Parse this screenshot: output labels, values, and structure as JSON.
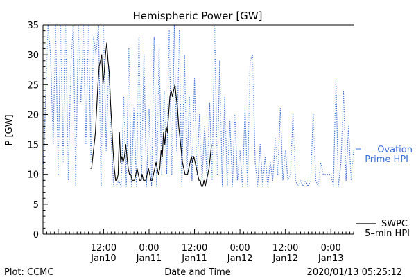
{
  "chart_data": {
    "type": "line",
    "title": "Hemispheric Power [GW]",
    "ylabel": "P [GW]",
    "xlabel": "Date and Time",
    "ylim": [
      0,
      35
    ],
    "xlim": [
      "2020-01-09T20:00",
      "2020-01-13T06:00"
    ],
    "yticks": [
      0,
      5,
      10,
      15,
      20,
      25,
      30,
      35
    ],
    "xticks": [
      {
        "t": "2020-01-10T12:00",
        "label": "12:00",
        "date": "Jan10"
      },
      {
        "t": "2020-01-11T00:00",
        "label": "0:00",
        "date": "Jan11"
      },
      {
        "t": "2020-01-11T12:00",
        "label": "12:00",
        "date": "Jan11"
      },
      {
        "t": "2020-01-12T00:00",
        "label": "0:00",
        "date": "Jan12"
      },
      {
        "t": "2020-01-12T12:00",
        "label": "12:00",
        "date": "Jan12"
      },
      {
        "t": "2020-01-13T00:00",
        "label": "0:00",
        "date": "Jan13"
      }
    ],
    "series": [
      {
        "name": "SWPC 5-min HPI",
        "style": "solid",
        "color": "#000000",
        "points": [
          [
            "2020-01-10T08:30",
            11
          ],
          [
            "2020-01-10T08:50",
            11
          ],
          [
            "2020-01-10T09:10",
            13
          ],
          [
            "2020-01-10T09:30",
            15
          ],
          [
            "2020-01-10T09:50",
            17
          ],
          [
            "2020-01-10T10:10",
            21
          ],
          [
            "2020-01-10T10:30",
            25
          ],
          [
            "2020-01-10T10:50",
            28
          ],
          [
            "2020-01-10T11:10",
            29
          ],
          [
            "2020-01-10T11:30",
            30
          ],
          [
            "2020-01-10T11:50",
            25
          ],
          [
            "2020-01-10T12:10",
            27
          ],
          [
            "2020-01-10T12:30",
            30
          ],
          [
            "2020-01-10T12:50",
            32
          ],
          [
            "2020-01-10T13:10",
            29
          ],
          [
            "2020-01-10T13:30",
            27
          ],
          [
            "2020-01-10T13:50",
            22
          ],
          [
            "2020-01-10T14:10",
            18
          ],
          [
            "2020-01-10T14:30",
            14
          ],
          [
            "2020-01-10T14:50",
            11
          ],
          [
            "2020-01-10T15:10",
            9
          ],
          [
            "2020-01-10T15:30",
            9
          ],
          [
            "2020-01-10T15:50",
            10
          ],
          [
            "2020-01-10T16:10",
            17
          ],
          [
            "2020-01-10T16:30",
            12
          ],
          [
            "2020-01-10T16:50",
            13
          ],
          [
            "2020-01-10T17:10",
            12
          ],
          [
            "2020-01-10T17:30",
            13
          ],
          [
            "2020-01-10T17:50",
            15
          ],
          [
            "2020-01-10T18:10",
            13
          ],
          [
            "2020-01-10T18:30",
            11
          ],
          [
            "2020-01-10T18:50",
            10
          ],
          [
            "2020-01-10T19:10",
            10
          ],
          [
            "2020-01-10T19:30",
            9
          ],
          [
            "2020-01-10T19:50",
            9
          ],
          [
            "2020-01-10T20:10",
            9
          ],
          [
            "2020-01-10T20:30",
            10
          ],
          [
            "2020-01-10T20:50",
            11
          ],
          [
            "2020-01-10T21:10",
            10
          ],
          [
            "2020-01-10T21:30",
            9
          ],
          [
            "2020-01-10T21:50",
            9
          ],
          [
            "2020-01-10T22:10",
            10
          ],
          [
            "2020-01-10T22:30",
            9
          ],
          [
            "2020-01-10T22:50",
            9
          ],
          [
            "2020-01-10T23:10",
            9
          ],
          [
            "2020-01-10T23:30",
            10
          ],
          [
            "2020-01-10T23:50",
            11
          ],
          [
            "2020-01-11T00:10",
            10
          ],
          [
            "2020-01-11T00:30",
            9
          ],
          [
            "2020-01-11T00:50",
            9
          ],
          [
            "2020-01-11T01:10",
            10
          ],
          [
            "2020-01-11T01:30",
            11
          ],
          [
            "2020-01-11T01:50",
            12
          ],
          [
            "2020-01-11T02:10",
            11
          ],
          [
            "2020-01-11T02:30",
            10
          ],
          [
            "2020-01-11T02:50",
            11
          ],
          [
            "2020-01-11T03:10",
            14
          ],
          [
            "2020-01-11T03:30",
            13
          ],
          [
            "2020-01-11T03:50",
            17
          ],
          [
            "2020-01-11T04:10",
            15
          ],
          [
            "2020-01-11T04:30",
            18
          ],
          [
            "2020-01-11T04:50",
            17
          ],
          [
            "2020-01-11T05:10",
            20
          ],
          [
            "2020-01-11T05:30",
            23
          ],
          [
            "2020-01-11T05:50",
            24
          ],
          [
            "2020-01-11T06:10",
            23
          ],
          [
            "2020-01-11T06:30",
            24
          ],
          [
            "2020-01-11T06:50",
            25
          ],
          [
            "2020-01-11T07:10",
            23
          ],
          [
            "2020-01-11T07:30",
            21
          ],
          [
            "2020-01-11T07:50",
            18
          ],
          [
            "2020-01-11T08:10",
            16
          ],
          [
            "2020-01-11T08:30",
            14
          ],
          [
            "2020-01-11T08:50",
            12
          ],
          [
            "2020-01-11T09:10",
            11
          ],
          [
            "2020-01-11T09:30",
            10
          ],
          [
            "2020-01-11T09:50",
            10
          ],
          [
            "2020-01-11T10:10",
            10
          ],
          [
            "2020-01-11T10:30",
            11
          ],
          [
            "2020-01-11T10:50",
            12
          ],
          [
            "2020-01-11T11:10",
            13
          ],
          [
            "2020-01-11T11:30",
            12
          ],
          [
            "2020-01-11T11:50",
            13
          ],
          [
            "2020-01-11T12:10",
            12
          ],
          [
            "2020-01-11T12:30",
            11
          ],
          [
            "2020-01-11T12:50",
            10
          ],
          [
            "2020-01-11T13:10",
            9
          ],
          [
            "2020-01-11T13:30",
            9
          ],
          [
            "2020-01-11T13:50",
            8
          ],
          [
            "2020-01-11T14:10",
            8
          ],
          [
            "2020-01-11T14:30",
            9
          ],
          [
            "2020-01-11T14:50",
            8
          ],
          [
            "2020-01-11T15:10",
            9
          ],
          [
            "2020-01-11T15:30",
            10
          ],
          [
            "2020-01-11T15:50",
            11
          ],
          [
            "2020-01-11T16:10",
            13
          ],
          [
            "2020-01-11T16:30",
            15
          ]
        ]
      },
      {
        "name": "Ovation Prime HPI",
        "style": "dotted",
        "color": "#3a6fd6",
        "points": [
          [
            "2020-01-09T20:00",
            8
          ],
          [
            "2020-01-09T20:40",
            22
          ],
          [
            "2020-01-09T21:20",
            35
          ],
          [
            "2020-01-09T22:00",
            30
          ],
          [
            "2020-01-09T22:40",
            15
          ],
          [
            "2020-01-09T23:20",
            35
          ],
          [
            "2020-01-10T00:00",
            10
          ],
          [
            "2020-01-10T00:40",
            35
          ],
          [
            "2020-01-10T01:20",
            12
          ],
          [
            "2020-01-10T02:00",
            35
          ],
          [
            "2020-01-10T02:40",
            9
          ],
          [
            "2020-01-10T03:20",
            28
          ],
          [
            "2020-01-10T04:00",
            35
          ],
          [
            "2020-01-10T04:40",
            8
          ],
          [
            "2020-01-10T05:20",
            35
          ],
          [
            "2020-01-10T06:00",
            22
          ],
          [
            "2020-01-10T06:40",
            35
          ],
          [
            "2020-01-10T07:20",
            15
          ],
          [
            "2020-01-10T08:00",
            35
          ],
          [
            "2020-01-10T08:40",
            12
          ],
          [
            "2020-01-10T09:20",
            33
          ],
          [
            "2020-01-10T10:00",
            30
          ],
          [
            "2020-01-10T10:40",
            35
          ],
          [
            "2020-01-10T11:20",
            8
          ],
          [
            "2020-01-10T12:00",
            35
          ],
          [
            "2020-01-10T12:40",
            14
          ],
          [
            "2020-01-10T13:20",
            28
          ],
          [
            "2020-01-10T14:00",
            16
          ],
          [
            "2020-01-10T14:40",
            8
          ],
          [
            "2020-01-10T15:20",
            8
          ],
          [
            "2020-01-10T16:00",
            9
          ],
          [
            "2020-01-10T16:40",
            8
          ],
          [
            "2020-01-10T17:20",
            23
          ],
          [
            "2020-01-10T18:00",
            8
          ],
          [
            "2020-01-10T18:40",
            31
          ],
          [
            "2020-01-10T19:20",
            8
          ],
          [
            "2020-01-10T20:00",
            21
          ],
          [
            "2020-01-10T20:40",
            8
          ],
          [
            "2020-01-10T21:20",
            33
          ],
          [
            "2020-01-10T22:00",
            9
          ],
          [
            "2020-01-10T22:40",
            30
          ],
          [
            "2020-01-10T23:20",
            8
          ],
          [
            "2020-01-11T00:00",
            21
          ],
          [
            "2020-01-11T00:40",
            8
          ],
          [
            "2020-01-11T01:20",
            33
          ],
          [
            "2020-01-11T02:00",
            8
          ],
          [
            "2020-01-11T02:40",
            31
          ],
          [
            "2020-01-11T03:20",
            10
          ],
          [
            "2020-01-11T04:00",
            24
          ],
          [
            "2020-01-11T04:40",
            10
          ],
          [
            "2020-01-11T05:20",
            34
          ],
          [
            "2020-01-11T06:00",
            10
          ],
          [
            "2020-01-11T06:40",
            35
          ],
          [
            "2020-01-11T07:20",
            14
          ],
          [
            "2020-01-11T08:00",
            34
          ],
          [
            "2020-01-11T08:40",
            8
          ],
          [
            "2020-01-11T09:20",
            30
          ],
          [
            "2020-01-11T10:00",
            10
          ],
          [
            "2020-01-11T10:40",
            23
          ],
          [
            "2020-01-11T11:20",
            9
          ],
          [
            "2020-01-11T12:00",
            26
          ],
          [
            "2020-01-11T12:40",
            10
          ],
          [
            "2020-01-11T13:20",
            20
          ],
          [
            "2020-01-11T14:00",
            9
          ],
          [
            "2020-01-11T14:40",
            18
          ],
          [
            "2020-01-11T15:20",
            9
          ],
          [
            "2020-01-11T16:00",
            22
          ],
          [
            "2020-01-11T16:40",
            9
          ],
          [
            "2020-01-11T17:20",
            35
          ],
          [
            "2020-01-11T18:00",
            10
          ],
          [
            "2020-01-11T18:40",
            29
          ],
          [
            "2020-01-11T19:20",
            8
          ],
          [
            "2020-01-11T20:00",
            23
          ],
          [
            "2020-01-11T20:40",
            8
          ],
          [
            "2020-01-11T21:20",
            19
          ],
          [
            "2020-01-11T22:00",
            8
          ],
          [
            "2020-01-11T22:40",
            20
          ],
          [
            "2020-01-11T23:20",
            9
          ],
          [
            "2020-01-12T00:00",
            14
          ],
          [
            "2020-01-12T00:40",
            8
          ],
          [
            "2020-01-12T01:20",
            21
          ],
          [
            "2020-01-12T02:00",
            8
          ],
          [
            "2020-01-12T02:40",
            29
          ],
          [
            "2020-01-12T03:20",
            30
          ],
          [
            "2020-01-12T04:00",
            12
          ],
          [
            "2020-01-12T04:40",
            8
          ],
          [
            "2020-01-12T05:20",
            15
          ],
          [
            "2020-01-12T06:00",
            8
          ],
          [
            "2020-01-12T06:40",
            13
          ],
          [
            "2020-01-12T07:20",
            8
          ],
          [
            "2020-01-12T08:00",
            12
          ],
          [
            "2020-01-12T08:40",
            9
          ],
          [
            "2020-01-12T09:20",
            16
          ],
          [
            "2020-01-12T10:00",
            10
          ],
          [
            "2020-01-12T10:40",
            21
          ],
          [
            "2020-01-12T11:20",
            9
          ],
          [
            "2020-01-12T12:00",
            14
          ],
          [
            "2020-01-12T12:40",
            9
          ],
          [
            "2020-01-12T13:20",
            10
          ],
          [
            "2020-01-12T14:00",
            20
          ],
          [
            "2020-01-12T14:40",
            9
          ],
          [
            "2020-01-12T15:20",
            8
          ],
          [
            "2020-01-12T16:00",
            9
          ],
          [
            "2020-01-12T16:40",
            8
          ],
          [
            "2020-01-12T17:20",
            9
          ],
          [
            "2020-01-12T18:00",
            8
          ],
          [
            "2020-01-12T18:40",
            9
          ],
          [
            "2020-01-12T19:20",
            20
          ],
          [
            "2020-01-12T20:00",
            9
          ],
          [
            "2020-01-12T20:40",
            8
          ],
          [
            "2020-01-12T21:20",
            12
          ],
          [
            "2020-01-12T22:00",
            10
          ],
          [
            "2020-01-12T22:40",
            10
          ],
          [
            "2020-01-12T23:20",
            10
          ],
          [
            "2020-01-13T00:00",
            10
          ],
          [
            "2020-01-13T00:40",
            8
          ],
          [
            "2020-01-13T01:20",
            26
          ],
          [
            "2020-01-13T02:00",
            8
          ],
          [
            "2020-01-13T02:40",
            12
          ],
          [
            "2020-01-13T03:20",
            24
          ],
          [
            "2020-01-13T04:00",
            9
          ],
          [
            "2020-01-13T04:40",
            18
          ],
          [
            "2020-01-13T05:20",
            9
          ],
          [
            "2020-01-13T06:00",
            14
          ]
        ]
      }
    ],
    "legend": [
      {
        "series": "Ovation Prime HPI",
        "lines": [
          "— Ovation",
          "Prime HPI"
        ]
      },
      {
        "series": "SWPC 5-min HPI",
        "lines": [
          "SWPC",
          "5–min HPI"
        ]
      }
    ],
    "legend_position": "right",
    "grid": false
  },
  "footer": {
    "left": "Plot: CCMC",
    "right": "2020/01/13 05:25:12"
  },
  "colors": {
    "ovation": "#3a6fd6",
    "swpc": "#000000"
  }
}
